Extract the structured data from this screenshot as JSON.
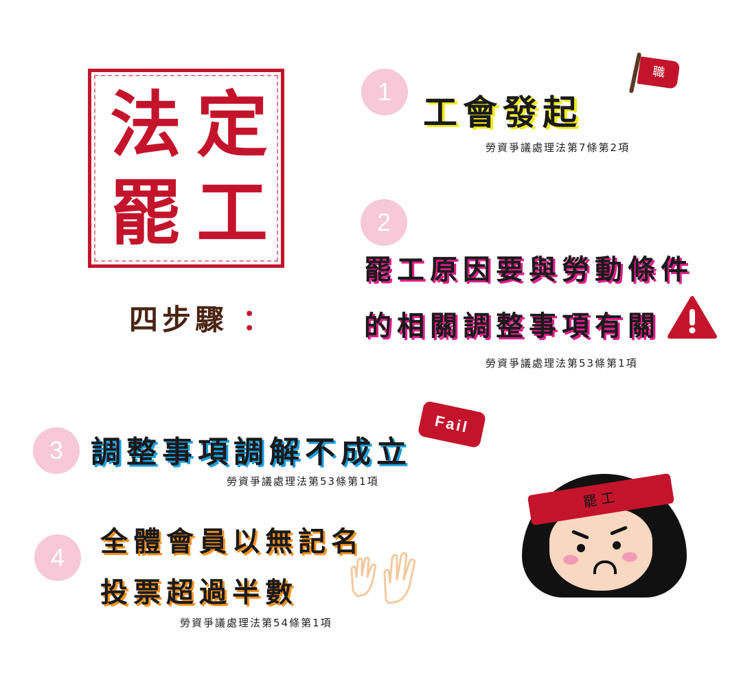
{
  "stamp": {
    "chars": [
      "法",
      "定",
      "罷",
      "工"
    ]
  },
  "steps_title": {
    "text": "四步驟",
    "colon": "："
  },
  "steps": [
    {
      "number": "1",
      "lines": [
        "工會發起"
      ],
      "law": "勞資爭議處理法第7條第2項",
      "flag_label": "職"
    },
    {
      "number": "2",
      "lines": [
        "罷工原因要與勞動條件",
        "的相關調整事項有關"
      ],
      "law": "勞資爭議處理法第53條第1項",
      "icon": "warning-icon"
    },
    {
      "number": "3",
      "lines": [
        "調整事項調解不成立"
      ],
      "law": "勞資爭議處理法第53條第1項",
      "badge": "Fail"
    },
    {
      "number": "4",
      "lines": [
        "全體會員以無記名",
        "投票超過半數"
      ],
      "law": "勞資爭議處理法第54條第1項",
      "icon": "raised-hands-icon"
    }
  ],
  "character": {
    "headband": "罷工"
  },
  "colors": {
    "red": "#c4142c",
    "pink_circle": "#f6c8d8",
    "yellow": "#f2ea19",
    "magenta": "#e01f8c",
    "blue": "#1aa0e0",
    "orange": "#f39221"
  }
}
